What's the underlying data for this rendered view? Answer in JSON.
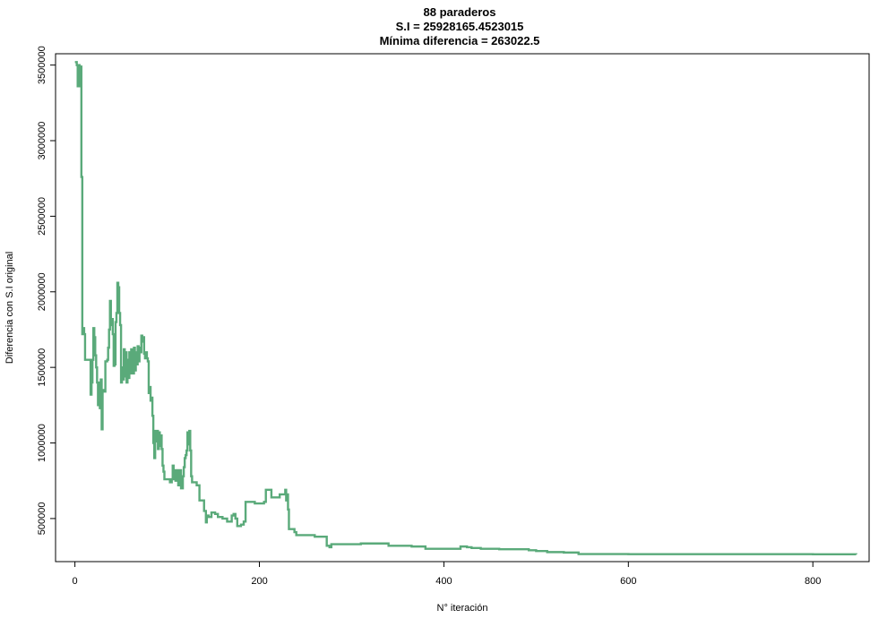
{
  "chart_data": {
    "type": "line",
    "title": [
      "88 paraderos",
      "S.I = 25928165.4523015",
      "Mínima diferencia = 263022.5"
    ],
    "xlabel": "N° iteración",
    "ylabel": "Diferencia con S.I original",
    "xlim": [
      -21,
      861
    ],
    "ylim": [
      215000,
      3575000
    ],
    "xticks": [
      0,
      200,
      400,
      600,
      800
    ],
    "xtick_labels": [
      "0",
      "200",
      "400",
      "600",
      "800"
    ],
    "yticks": [
      500000,
      1000000,
      1500000,
      2000000,
      2500000,
      3000000,
      3500000
    ],
    "ytick_labels": [
      "500000",
      "1000000",
      "1500000",
      "2000000",
      "2500000",
      "3000000",
      "3500000"
    ],
    "grid": false,
    "series": [
      {
        "color": "#5aaa7a",
        "step": true,
        "points": [
          [
            0,
            3520000
          ],
          [
            2,
            3500000
          ],
          [
            3,
            3360000
          ],
          [
            4,
            3500000
          ],
          [
            5,
            3360000
          ],
          [
            6,
            3490000
          ],
          [
            7,
            2760000
          ],
          [
            8,
            1720000
          ],
          [
            9,
            1760000
          ],
          [
            10,
            1720000
          ],
          [
            11,
            1550000
          ],
          [
            15,
            1550000
          ],
          [
            17,
            1320000
          ],
          [
            18,
            1400000
          ],
          [
            19,
            1550000
          ],
          [
            20,
            1760000
          ],
          [
            21,
            1700000
          ],
          [
            22,
            1580000
          ],
          [
            23,
            1500000
          ],
          [
            24,
            1400000
          ],
          [
            25,
            1250000
          ],
          [
            26,
            1400000
          ],
          [
            27,
            1230000
          ],
          [
            28,
            1420000
          ],
          [
            29,
            1090000
          ],
          [
            30,
            1350000
          ],
          [
            31,
            1340000
          ],
          [
            33,
            1540000
          ],
          [
            35,
            1550000
          ],
          [
            36,
            1630000
          ],
          [
            37,
            1750000
          ],
          [
            38,
            1940000
          ],
          [
            39,
            1780000
          ],
          [
            40,
            1820000
          ],
          [
            41,
            1720000
          ],
          [
            42,
            1510000
          ],
          [
            43,
            1520000
          ],
          [
            44,
            1800000
          ],
          [
            45,
            1860000
          ],
          [
            46,
            2060000
          ],
          [
            47,
            2030000
          ],
          [
            48,
            1860000
          ],
          [
            49,
            1780000
          ],
          [
            50,
            1400000
          ],
          [
            51,
            1500000
          ],
          [
            52,
            1420000
          ],
          [
            53,
            1620000
          ],
          [
            54,
            1440000
          ],
          [
            55,
            1600000
          ],
          [
            56,
            1400000
          ],
          [
            57,
            1550000
          ],
          [
            58,
            1430000
          ],
          [
            59,
            1600000
          ],
          [
            60,
            1460000
          ],
          [
            61,
            1620000
          ],
          [
            62,
            1560000
          ],
          [
            63,
            1460000
          ],
          [
            64,
            1630000
          ],
          [
            65,
            1480000
          ],
          [
            66,
            1600000
          ],
          [
            67,
            1520000
          ],
          [
            68,
            1640000
          ],
          [
            69,
            1540000
          ],
          [
            70,
            1630000
          ],
          [
            71,
            1600000
          ],
          [
            72,
            1710000
          ],
          [
            73,
            1670000
          ],
          [
            74,
            1700000
          ],
          [
            75,
            1590000
          ],
          [
            76,
            1560000
          ],
          [
            77,
            1600000
          ],
          [
            78,
            1560000
          ],
          [
            79,
            1540000
          ],
          [
            80,
            1330000
          ],
          [
            81,
            1370000
          ],
          [
            82,
            1280000
          ],
          [
            83,
            1300000
          ],
          [
            84,
            1180000
          ],
          [
            85,
            1000000
          ],
          [
            86,
            900000
          ],
          [
            87,
            1080000
          ],
          [
            88,
            1010000
          ],
          [
            89,
            1080000
          ],
          [
            90,
            960000
          ],
          [
            91,
            1070000
          ],
          [
            92,
            980000
          ],
          [
            93,
            1050000
          ],
          [
            94,
            960000
          ],
          [
            95,
            850000
          ],
          [
            96,
            810000
          ],
          [
            97,
            760000
          ],
          [
            100,
            760000
          ],
          [
            103,
            740000
          ],
          [
            105,
            760000
          ],
          [
            106,
            850000
          ],
          [
            107,
            760000
          ],
          [
            108,
            820000
          ],
          [
            109,
            750000
          ],
          [
            110,
            820000
          ],
          [
            111,
            750000
          ],
          [
            112,
            720000
          ],
          [
            113,
            820000
          ],
          [
            115,
            700000
          ],
          [
            117,
            780000
          ],
          [
            118,
            840000
          ],
          [
            119,
            900000
          ],
          [
            120,
            920000
          ],
          [
            121,
            950000
          ],
          [
            122,
            1070000
          ],
          [
            123,
            990000
          ],
          [
            124,
            1080000
          ],
          [
            125,
            950000
          ],
          [
            126,
            780000
          ],
          [
            127,
            740000
          ],
          [
            130,
            740000
          ],
          [
            132,
            720000
          ],
          [
            135,
            620000
          ],
          [
            138,
            620000
          ],
          [
            140,
            550000
          ],
          [
            142,
            475000
          ],
          [
            143,
            520000
          ],
          [
            145,
            510000
          ],
          [
            148,
            540000
          ],
          [
            152,
            530000
          ],
          [
            155,
            510000
          ],
          [
            160,
            500000
          ],
          [
            163,
            500000
          ],
          [
            165,
            480000
          ],
          [
            168,
            480000
          ],
          [
            170,
            520000
          ],
          [
            172,
            530000
          ],
          [
            174,
            500000
          ],
          [
            176,
            450000
          ],
          [
            180,
            460000
          ],
          [
            183,
            480000
          ],
          [
            185,
            610000
          ],
          [
            190,
            610000
          ],
          [
            195,
            600000
          ],
          [
            200,
            600000
          ],
          [
            205,
            610000
          ],
          [
            207,
            690000
          ],
          [
            210,
            690000
          ],
          [
            213,
            640000
          ],
          [
            220,
            640000
          ],
          [
            222,
            660000
          ],
          [
            226,
            660000
          ],
          [
            228,
            690000
          ],
          [
            229,
            620000
          ],
          [
            230,
            660000
          ],
          [
            231,
            560000
          ],
          [
            232,
            430000
          ],
          [
            235,
            430000
          ],
          [
            238,
            410000
          ],
          [
            240,
            390000
          ],
          [
            255,
            390000
          ],
          [
            260,
            380000
          ],
          [
            270,
            380000
          ],
          [
            273,
            320000
          ],
          [
            276,
            310000
          ],
          [
            278,
            330000
          ],
          [
            285,
            330000
          ],
          [
            300,
            330000
          ],
          [
            310,
            335000
          ],
          [
            320,
            335000
          ],
          [
            330,
            335000
          ],
          [
            340,
            320000
          ],
          [
            350,
            320000
          ],
          [
            365,
            315000
          ],
          [
            380,
            300000
          ],
          [
            400,
            300000
          ],
          [
            415,
            300000
          ],
          [
            418,
            315000
          ],
          [
            425,
            310000
          ],
          [
            430,
            305000
          ],
          [
            440,
            300000
          ],
          [
            450,
            300000
          ],
          [
            460,
            297000
          ],
          [
            490,
            297000
          ],
          [
            492,
            290000
          ],
          [
            500,
            285000
          ],
          [
            510,
            285000
          ],
          [
            512,
            278000
          ],
          [
            530,
            275000
          ],
          [
            545,
            275000
          ],
          [
            546,
            265000
          ],
          [
            560,
            265000
          ],
          [
            600,
            264000
          ],
          [
            700,
            264000
          ],
          [
            800,
            263500
          ],
          [
            847,
            263022.5
          ]
        ]
      }
    ]
  }
}
